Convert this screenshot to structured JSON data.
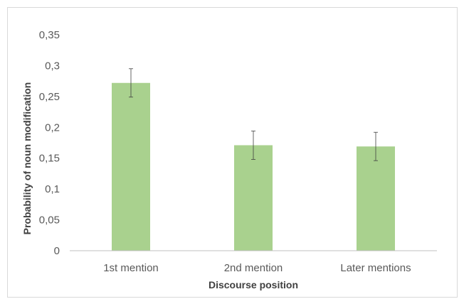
{
  "chart_data": {
    "type": "bar",
    "title": "",
    "xlabel": "Discourse position",
    "ylabel": "Probability of noun modification",
    "categories": [
      "1st mention",
      "2nd mention",
      "Later mentions"
    ],
    "values": [
      0.272,
      0.171,
      0.169
    ],
    "error": [
      0.023,
      0.023,
      0.023
    ],
    "ylim": [
      0,
      0.35
    ],
    "yticks": [
      0,
      0.05,
      0.1,
      0.15,
      0.2,
      0.25,
      0.3,
      0.35
    ],
    "ytick_labels": [
      "0",
      "0,05",
      "0,1",
      "0,15",
      "0,2",
      "0,25",
      "0,3",
      "0,35"
    ],
    "grid": false,
    "legend": "none",
    "colors": {
      "bar": "#a9d18e",
      "axis": "#bfbfbf",
      "errorbar": "#404040"
    }
  }
}
